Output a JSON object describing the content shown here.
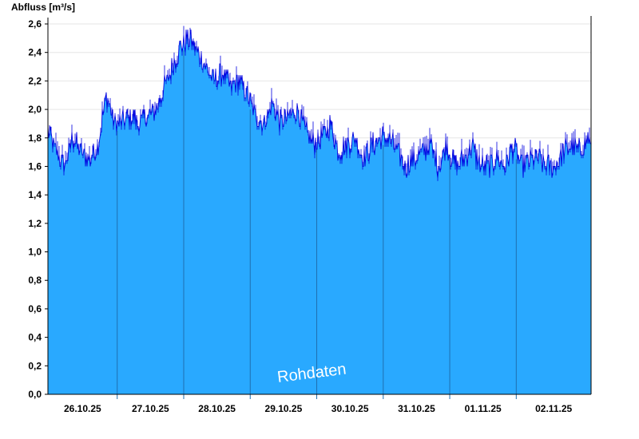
{
  "chart_data": {
    "type": "area",
    "ylabel": "Abfluss [m³/s]",
    "ylim": [
      0,
      2.6
    ],
    "yticks": [
      "0,0",
      "0,2",
      "0,4",
      "0,6",
      "0,8",
      "1,0",
      "1,2",
      "1,4",
      "1,6",
      "1,8",
      "2,0",
      "2,2",
      "2,4",
      "2,6"
    ],
    "ytick_values": [
      0,
      0.2,
      0.4,
      0.6,
      0.8,
      1.0,
      1.2,
      1.4,
      1.6,
      1.8,
      2.0,
      2.2,
      2.4,
      2.6
    ],
    "xlim": [
      "2025-10-25T21:00",
      "2025-11-03T01:00"
    ],
    "xticks": [
      "26.10.25",
      "27.10.25",
      "28.10.25",
      "29.10.25",
      "30.10.25",
      "31.10.25",
      "01.11.25",
      "02.11.25"
    ],
    "day_lines": [
      "2025-10-26T22:00",
      "2025-10-27T22:00",
      "2025-10-28T22:00",
      "2025-10-29T22:00",
      "2025-10-30T22:00",
      "2025-10-31T22:00",
      "2025-11-01T22:00"
    ],
    "series": [
      {
        "x": [
          "2025-10-25T21:00",
          "2025-10-26T00:00",
          "2025-10-26T03:00",
          "2025-10-26T06:00",
          "2025-10-26T09:00",
          "2025-10-26T12:00",
          "2025-10-26T15:00",
          "2025-10-26T18:00",
          "2025-10-26T21:00",
          "2025-10-27T00:00",
          "2025-10-27T03:00",
          "2025-10-27T06:00",
          "2025-10-27T09:00",
          "2025-10-27T12:00",
          "2025-10-27T15:00",
          "2025-10-27T18:00",
          "2025-10-27T21:00",
          "2025-10-28T00:00",
          "2025-10-28T03:00",
          "2025-10-28T06:00",
          "2025-10-28T09:00",
          "2025-10-28T12:00",
          "2025-10-28T15:00",
          "2025-10-28T18:00",
          "2025-10-28T21:00",
          "2025-10-29T00:00",
          "2025-10-29T03:00",
          "2025-10-29T06:00",
          "2025-10-29T09:00",
          "2025-10-29T12:00",
          "2025-10-29T15:00",
          "2025-10-29T18:00",
          "2025-10-29T21:00",
          "2025-10-30T00:00",
          "2025-10-30T03:00",
          "2025-10-30T06:00",
          "2025-10-30T09:00",
          "2025-10-30T12:00",
          "2025-10-30T15:00",
          "2025-10-30T18:00",
          "2025-10-30T21:00",
          "2025-10-31T00:00",
          "2025-10-31T03:00",
          "2025-10-31T06:00",
          "2025-10-31T09:00",
          "2025-10-31T12:00",
          "2025-10-31T15:00",
          "2025-10-31T18:00",
          "2025-10-31T21:00",
          "2025-11-01T00:00",
          "2025-11-01T03:00",
          "2025-11-01T06:00",
          "2025-11-01T09:00",
          "2025-11-01T12:00",
          "2025-11-01T15:00",
          "2025-11-01T18:00",
          "2025-11-01T21:00",
          "2025-11-02T00:00",
          "2025-11-02T03:00",
          "2025-11-02T06:00",
          "2025-11-02T09:00",
          "2025-11-02T12:00",
          "2025-11-02T15:00",
          "2025-11-02T18:00",
          "2025-11-02T21:00",
          "2025-11-03T00:00",
          "2025-11-03T01:00"
        ],
        "y": [
          1.85,
          1.7,
          1.6,
          1.8,
          1.7,
          1.65,
          1.75,
          2.1,
          1.9,
          1.9,
          1.95,
          1.9,
          1.95,
          2.0,
          2.15,
          2.3,
          2.45,
          2.5,
          2.4,
          2.3,
          2.2,
          2.25,
          2.15,
          2.2,
          2.1,
          1.95,
          1.9,
          2.05,
          1.9,
          1.95,
          2.0,
          1.85,
          1.75,
          1.8,
          1.9,
          1.7,
          1.75,
          1.8,
          1.65,
          1.75,
          1.8,
          1.8,
          1.7,
          1.6,
          1.65,
          1.7,
          1.75,
          1.6,
          1.75,
          1.6,
          1.65,
          1.75,
          1.6,
          1.6,
          1.65,
          1.6,
          1.75,
          1.6,
          1.65,
          1.65,
          1.6,
          1.6,
          1.7,
          1.75,
          1.7,
          1.8,
          1.7
        ]
      }
    ],
    "annotation": "Rohdaten",
    "colors": {
      "fill": "#29a9ff",
      "line": "#0000e0",
      "grid": "#e6e6e6",
      "axis": "#000000",
      "day_line": "#1f6fb0"
    }
  }
}
